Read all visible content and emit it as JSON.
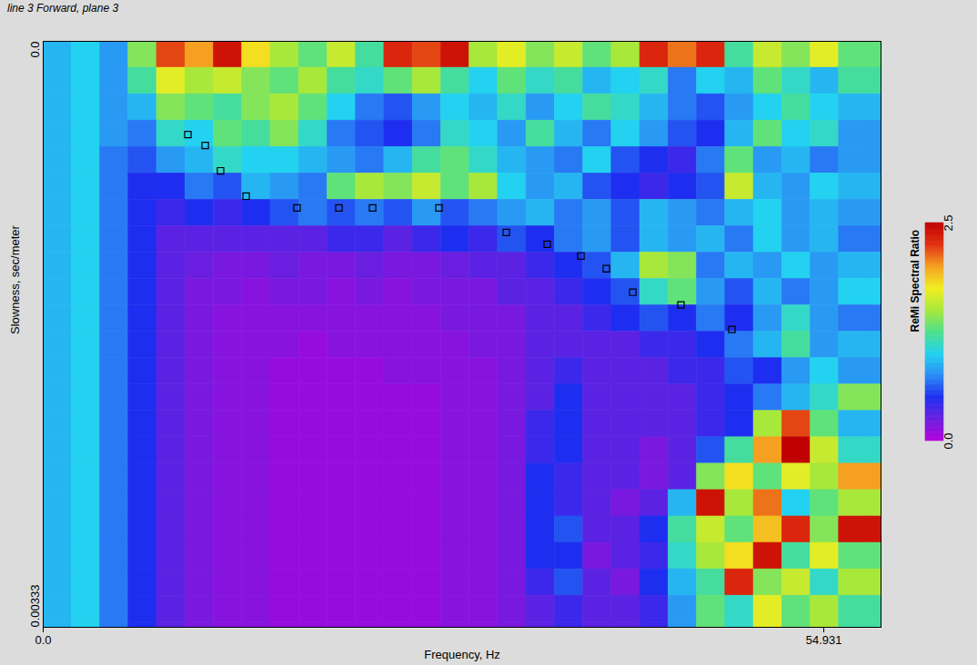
{
  "chart_data": {
    "type": "heatmap",
    "title": "line 3 Forward, plane 3",
    "x_label": "Frequency, Hz",
    "y_label": "Slowness, sec/meter",
    "xlim": [
      0,
      58.96
    ],
    "ylim": [
      0,
      0.00333
    ],
    "xticks": [
      {
        "value": 0,
        "label": "0.0"
      },
      54.931
    ],
    "yticks": [
      {
        "value": 0,
        "label": "0.0"
      },
      0.00333
    ],
    "cells": {
      "x_edges": [
        0,
        2,
        4,
        6,
        8,
        10,
        12,
        14,
        16,
        18,
        20,
        22,
        24,
        26,
        28,
        30,
        32,
        34,
        36,
        38,
        40,
        42,
        44,
        46,
        48,
        50,
        52,
        54,
        56,
        58,
        60
      ],
      "y_edges": [
        0,
        0.00015,
        0.0003,
        0.00045,
        0.0006,
        0.00075,
        0.0009,
        0.00105,
        0.0012,
        0.00135,
        0.0015,
        0.00165,
        0.0018,
        0.00195,
        0.0021,
        0.00225,
        0.0024,
        0.00255,
        0.0027,
        0.00285,
        0.003,
        0.00315,
        0.0033,
        0.00345
      ],
      "values": [
        [
          0.9,
          1.0,
          0.8,
          1.4,
          2.2,
          2.0,
          2.4,
          1.8,
          1.5,
          1.3,
          1.6,
          1.2,
          2.3,
          2.2,
          2.4,
          1.5,
          1.7,
          1.4,
          1.6,
          1.3,
          1.5,
          2.3,
          2.1,
          2.3,
          1.2,
          1.6,
          1.4,
          1.7,
          1.3,
          1.3
        ],
        [
          0.9,
          1.0,
          0.8,
          1.2,
          1.7,
          1.5,
          1.6,
          1.4,
          1.3,
          1.5,
          1.2,
          1.1,
          1.3,
          1.5,
          1.2,
          1.0,
          1.3,
          1.1,
          1.2,
          0.9,
          1.0,
          1.1,
          0.7,
          1.0,
          0.9,
          1.3,
          1.1,
          0.9,
          1.2,
          1.2
        ],
        [
          0.9,
          1.0,
          0.8,
          0.9,
          1.4,
          1.3,
          1.2,
          1.4,
          1.5,
          1.3,
          1.0,
          0.7,
          0.6,
          0.8,
          1.0,
          0.9,
          1.1,
          0.8,
          1.0,
          1.2,
          1.1,
          0.9,
          0.7,
          0.6,
          0.8,
          1.0,
          1.2,
          1.0,
          0.9,
          0.9
        ],
        [
          0.9,
          1.0,
          0.8,
          0.7,
          1.1,
          1.0,
          1.3,
          1.2,
          1.4,
          1.1,
          0.7,
          0.6,
          0.5,
          0.7,
          1.1,
          1.0,
          0.8,
          1.2,
          0.9,
          0.7,
          1.0,
          0.8,
          0.6,
          0.5,
          0.9,
          1.3,
          1.0,
          1.1,
          0.8,
          0.8
        ],
        [
          0.9,
          1.0,
          0.7,
          0.6,
          0.8,
          0.9,
          1.1,
          1.0,
          1.0,
          0.9,
          0.8,
          0.7,
          0.9,
          1.2,
          1.3,
          1.1,
          0.9,
          0.8,
          0.7,
          1.0,
          0.6,
          0.5,
          0.4,
          0.7,
          1.3,
          0.8,
          0.9,
          0.7,
          0.8,
          0.8
        ],
        [
          0.9,
          1.0,
          0.7,
          0.5,
          0.5,
          0.7,
          0.6,
          0.9,
          0.8,
          0.7,
          1.3,
          1.5,
          1.4,
          1.6,
          1.3,
          1.5,
          1.0,
          0.8,
          0.9,
          0.6,
          0.5,
          0.4,
          0.5,
          0.6,
          1.6,
          0.9,
          0.8,
          1.0,
          0.9,
          0.9
        ],
        [
          0.9,
          1.0,
          0.7,
          0.5,
          0.4,
          0.5,
          0.4,
          0.5,
          0.6,
          0.7,
          0.6,
          0.7,
          0.6,
          0.8,
          0.6,
          0.7,
          0.8,
          0.9,
          0.7,
          0.8,
          0.6,
          0.9,
          0.8,
          0.7,
          0.9,
          1.0,
          0.8,
          0.9,
          0.8,
          0.8
        ],
        [
          0.9,
          1.0,
          0.7,
          0.5,
          0.3,
          0.3,
          0.3,
          0.3,
          0.3,
          0.3,
          0.4,
          0.4,
          0.3,
          0.4,
          0.5,
          0.4,
          0.6,
          0.5,
          0.7,
          0.8,
          0.6,
          0.9,
          0.8,
          0.9,
          0.7,
          1.0,
          0.8,
          0.9,
          0.7,
          0.7
        ],
        [
          0.9,
          1.0,
          0.7,
          0.5,
          0.3,
          0.25,
          0.2,
          0.2,
          0.25,
          0.2,
          0.2,
          0.25,
          0.2,
          0.2,
          0.25,
          0.3,
          0.3,
          0.4,
          0.5,
          0.6,
          0.9,
          1.5,
          1.4,
          0.7,
          0.9,
          0.8,
          1.0,
          0.8,
          0.9,
          0.9
        ],
        [
          0.9,
          1.0,
          0.7,
          0.5,
          0.3,
          0.2,
          0.2,
          0.15,
          0.2,
          0.2,
          0.15,
          0.2,
          0.15,
          0.2,
          0.2,
          0.2,
          0.3,
          0.3,
          0.4,
          0.5,
          0.6,
          1.1,
          1.3,
          0.8,
          0.6,
          0.9,
          0.7,
          0.8,
          1.0,
          1.0
        ],
        [
          0.9,
          1.0,
          0.7,
          0.5,
          0.3,
          0.2,
          0.15,
          0.15,
          0.15,
          0.15,
          0.15,
          0.15,
          0.15,
          0.15,
          0.2,
          0.2,
          0.2,
          0.3,
          0.3,
          0.4,
          0.5,
          0.6,
          0.5,
          0.7,
          0.5,
          0.8,
          1.1,
          0.8,
          0.7,
          0.7
        ],
        [
          0.9,
          1.0,
          0.7,
          0.5,
          0.3,
          0.2,
          0.15,
          0.15,
          0.15,
          0.1,
          0.15,
          0.15,
          0.15,
          0.15,
          0.15,
          0.2,
          0.2,
          0.3,
          0.3,
          0.3,
          0.3,
          0.4,
          0.4,
          0.5,
          0.7,
          0.9,
          1.2,
          0.8,
          0.9,
          0.9
        ],
        [
          0.9,
          1.0,
          0.7,
          0.5,
          0.3,
          0.2,
          0.15,
          0.15,
          0.1,
          0.1,
          0.1,
          0.1,
          0.15,
          0.15,
          0.15,
          0.15,
          0.2,
          0.3,
          0.4,
          0.3,
          0.3,
          0.3,
          0.4,
          0.4,
          0.6,
          0.5,
          0.8,
          1.0,
          0.8,
          0.8
        ],
        [
          0.9,
          1.0,
          0.7,
          0.5,
          0.3,
          0.2,
          0.15,
          0.15,
          0.1,
          0.1,
          0.1,
          0.1,
          0.1,
          0.1,
          0.15,
          0.15,
          0.2,
          0.3,
          0.5,
          0.3,
          0.3,
          0.3,
          0.3,
          0.4,
          0.5,
          0.7,
          0.9,
          1.1,
          1.4,
          1.4
        ],
        [
          0.9,
          1.0,
          0.7,
          0.5,
          0.3,
          0.2,
          0.15,
          0.15,
          0.1,
          0.1,
          0.1,
          0.1,
          0.1,
          0.1,
          0.15,
          0.15,
          0.2,
          0.4,
          0.5,
          0.3,
          0.3,
          0.3,
          0.3,
          0.4,
          0.5,
          1.5,
          2.2,
          1.3,
          0.9,
          0.9
        ],
        [
          0.9,
          1.0,
          0.7,
          0.5,
          0.3,
          0.2,
          0.15,
          0.15,
          0.1,
          0.1,
          0.1,
          0.1,
          0.1,
          0.1,
          0.15,
          0.15,
          0.2,
          0.4,
          0.5,
          0.3,
          0.3,
          0.2,
          0.3,
          0.6,
          1.2,
          2.0,
          2.5,
          1.6,
          1.1,
          1.1
        ],
        [
          0.9,
          1.0,
          0.7,
          0.5,
          0.3,
          0.2,
          0.15,
          0.15,
          0.1,
          0.1,
          0.1,
          0.1,
          0.1,
          0.1,
          0.15,
          0.15,
          0.2,
          0.5,
          0.4,
          0.3,
          0.3,
          0.2,
          0.3,
          1.4,
          1.8,
          1.3,
          1.7,
          1.5,
          2.0,
          2.0
        ],
        [
          0.9,
          1.0,
          0.7,
          0.5,
          0.3,
          0.2,
          0.15,
          0.15,
          0.1,
          0.1,
          0.1,
          0.1,
          0.1,
          0.1,
          0.15,
          0.15,
          0.2,
          0.5,
          0.4,
          0.3,
          0.2,
          0.3,
          0.9,
          2.4,
          1.5,
          2.1,
          1.0,
          1.3,
          1.5,
          1.5
        ],
        [
          0.9,
          1.0,
          0.7,
          0.5,
          0.3,
          0.2,
          0.15,
          0.15,
          0.1,
          0.1,
          0.1,
          0.1,
          0.1,
          0.1,
          0.15,
          0.15,
          0.2,
          0.5,
          0.6,
          0.3,
          0.3,
          0.5,
          1.2,
          1.6,
          1.3,
          1.9,
          2.3,
          1.4,
          2.4,
          2.4
        ],
        [
          0.9,
          1.0,
          0.7,
          0.5,
          0.3,
          0.2,
          0.15,
          0.15,
          0.1,
          0.1,
          0.1,
          0.1,
          0.1,
          0.1,
          0.15,
          0.15,
          0.2,
          0.5,
          0.5,
          0.2,
          0.3,
          0.4,
          1.1,
          1.5,
          1.8,
          2.4,
          1.2,
          1.7,
          1.3,
          1.3
        ],
        [
          0.9,
          1.0,
          0.7,
          0.5,
          0.3,
          0.2,
          0.15,
          0.15,
          0.1,
          0.1,
          0.1,
          0.1,
          0.1,
          0.1,
          0.15,
          0.15,
          0.2,
          0.4,
          0.6,
          0.3,
          0.2,
          0.5,
          0.9,
          1.2,
          2.3,
          1.4,
          1.6,
          1.1,
          1.5,
          1.5
        ],
        [
          0.9,
          1.0,
          0.7,
          0.5,
          0.3,
          0.2,
          0.15,
          0.15,
          0.1,
          0.1,
          0.1,
          0.1,
          0.1,
          0.1,
          0.15,
          0.15,
          0.2,
          0.3,
          0.4,
          0.3,
          0.3,
          0.4,
          0.8,
          1.3,
          1.1,
          1.7,
          1.3,
          1.5,
          1.2,
          1.2
        ],
        [
          0.9,
          1.0,
          0.7,
          0.5,
          0.3,
          0.2,
          0.15,
          0.15,
          0.1,
          0.1,
          0.1,
          0.1,
          0.1,
          0.1,
          0.15,
          0.15,
          0.2,
          0.3,
          0.4,
          0.3,
          0.3,
          0.4,
          0.8,
          1.3,
          1.1,
          1.7,
          1.3,
          1.5,
          1.2,
          1.2
        ]
      ]
    },
    "colorbar": {
      "label": "ReMi Spectral Ratio",
      "range": [
        0,
        2.5
      ],
      "ticks": [
        {
          "value": 0,
          "label": "0.0"
        },
        {
          "value": 2.5,
          "label": "2.5"
        }
      ]
    },
    "points": {
      "x": [
        10.18,
        11.4,
        12.48,
        14.28,
        17.86,
        20.81,
        23.18,
        27.85,
        32.59,
        35.47,
        37.84,
        39.63,
        41.49,
        44.88,
        48.46
      ],
      "y": [
        0.00053,
        0.000592,
        0.000736,
        0.00088,
        0.000947,
        0.000947,
        0.000947,
        0.000947,
        0.001086,
        0.001153,
        0.00122,
        0.001292,
        0.001426,
        0.001498,
        0.001637
      ],
      "marker": "square",
      "color": "#000000"
    }
  }
}
